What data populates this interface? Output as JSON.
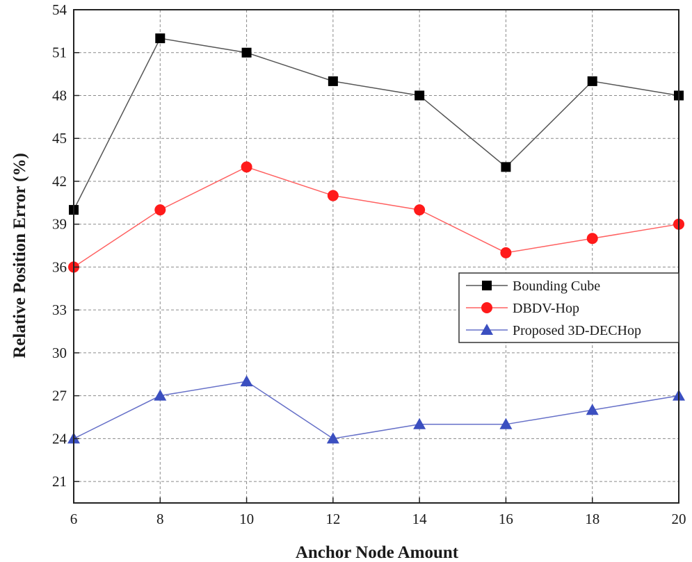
{
  "chart_data": {
    "type": "line",
    "title": "",
    "xlabel": "Anchor Node Amount",
    "ylabel": "Relative Position Error (%)",
    "x": [
      6,
      8,
      10,
      12,
      14,
      16,
      18,
      20
    ],
    "xlim": [
      6,
      20
    ],
    "ylim": [
      19.5,
      54
    ],
    "x_ticks": [
      "6",
      "8",
      "10",
      "12",
      "14",
      "16",
      "18",
      "20"
    ],
    "y_ticks": [
      "21",
      "24",
      "27",
      "30",
      "33",
      "36",
      "39",
      "42",
      "45",
      "48",
      "51",
      "54"
    ],
    "grid": true,
    "legend_position": "right",
    "series": [
      {
        "name": "Bounding Cube",
        "marker": "square",
        "line_color": "#555555",
        "marker_color": "#000000",
        "values": [
          40,
          52,
          51,
          49,
          48,
          43,
          49,
          48
        ]
      },
      {
        "name": "DBDV-Hop",
        "marker": "circle",
        "line_color": "#ff6060",
        "marker_color": "#ff1a1a",
        "values": [
          36,
          40,
          43,
          41,
          40,
          37,
          38,
          39
        ]
      },
      {
        "name": "Proposed 3D-DECHop",
        "marker": "triangle",
        "line_color": "#6670c8",
        "marker_color": "#3b4fc0",
        "values": [
          24,
          27,
          28,
          24,
          25,
          25,
          26,
          27
        ]
      }
    ]
  }
}
